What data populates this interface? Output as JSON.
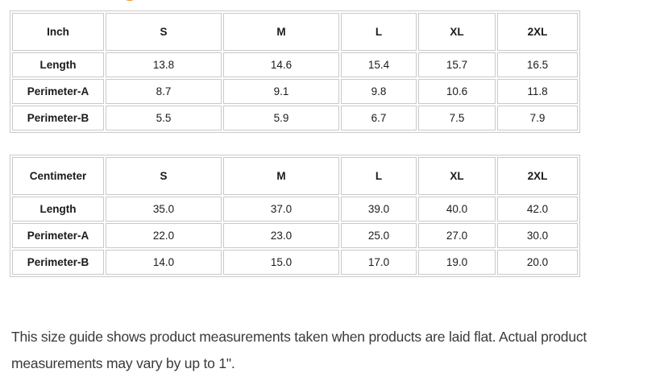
{
  "clipped_heading": {
    "visible_letter_fragment": "g",
    "color": "#f6921e"
  },
  "tables": [
    {
      "unit_header": "Inch",
      "size_columns": [
        "S",
        "M",
        "L",
        "XL",
        "2XL"
      ],
      "rows": [
        {
          "label": "Length",
          "values": [
            "13.8",
            "14.6",
            "15.4",
            "15.7",
            "16.5"
          ]
        },
        {
          "label": "Perimeter-A",
          "values": [
            "8.7",
            "9.1",
            "9.8",
            "10.6",
            "11.8"
          ]
        },
        {
          "label": "Perimeter-B",
          "values": [
            "5.5",
            "5.9",
            "6.7",
            "7.5",
            "7.9"
          ]
        }
      ]
    },
    {
      "unit_header": "Centimeter",
      "size_columns": [
        "S",
        "M",
        "L",
        "XL",
        "2XL"
      ],
      "rows": [
        {
          "label": "Length",
          "values": [
            "35.0",
            "37.0",
            "39.0",
            "40.0",
            "42.0"
          ]
        },
        {
          "label": "Perimeter-A",
          "values": [
            "22.0",
            "23.0",
            "25.0",
            "27.0",
            "30.0"
          ]
        },
        {
          "label": "Perimeter-B",
          "values": [
            "14.0",
            "15.0",
            "17.0",
            "19.0",
            "20.0"
          ]
        }
      ]
    }
  ],
  "note_text": "This size guide shows product measurements taken when products are laid flat. Actual product measurements may vary by up to 1\"."
}
